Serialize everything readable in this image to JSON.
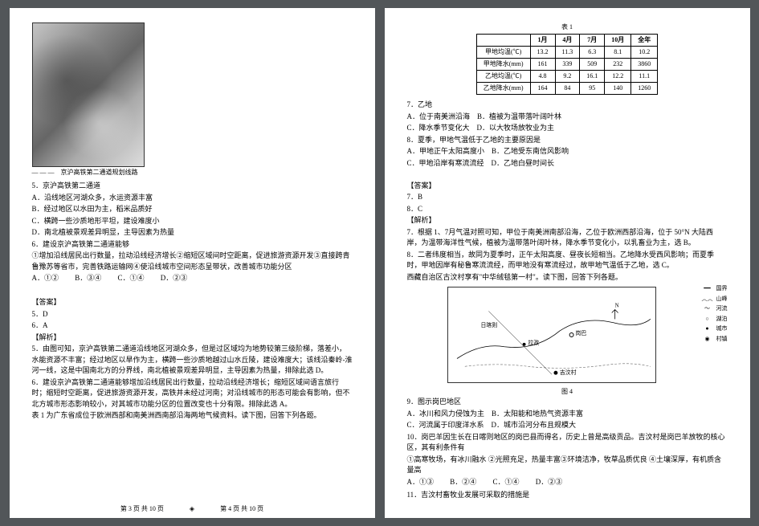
{
  "page_left": {
    "map_legend_dash": "— — —",
    "map_legend_text": "京沪高铁第二通道规划线路",
    "q5_stem": "5．京沪高铁第二通道",
    "q5_A": "A．沿线地区河湖众多，水运资源丰富",
    "q5_B": "B．经过地区以水田为主，稻米品质好",
    "q5_C": "C．横跨一些沙质地形平坦，建设难度小",
    "q5_D": "D．南北植被景观差异明显，主导因素为热量",
    "q6_stem": "6．建设京沪高铁第二通道能够",
    "q6_c1": "①增加沿线居民出行数量，拉动沿线经济增长②缩短区域间时空距离，促进旅游资源开发③直接跨青鲁豫苏等省市，完善铁路运输网④使沿线城市空间形态呈带状，改善城市功能分区",
    "q6_A": "A．①②",
    "q6_B": "B．③④",
    "q6_C": "C．①④",
    "q6_D": "D．②③",
    "ans_header": "【答案】",
    "ans5": "5．D",
    "ans6": "6．A",
    "explain_header": "【解析】",
    "explain5": "5．由图可知，京沪高铁第二通道沿线地区河湖众多，但是过区域均为地势较第三级阶梯，落差小，水能资源不丰富；经过地区以旱作为主，横跨一些沙质地越过山水丘陵，建设难度大；该线沿秦岭-淮河一线，这是中国南北方的分界线，南北植被景观差异明显，主导因素为热量，排除此选 D。",
    "explain6": "6．建设京沪高铁第二通道能够增加沿线居民出行数量，拉动沿线经济增长；缩短区域间语言旅行时；缩短时空距离，促进旅游资源开发，高铁并未经过河南；对沿线城市的形态可能会有影响，但不北方城市形态影响较小，对其城市功能分区的位置改变也十分有限。排除此选 A。",
    "tail_text": "表 1 为广东省成位于欧洲西部和南美洲西南部沿海两地气候资料。读下图，回答下列各题。",
    "footer_left": "第 3 页  共 10 页",
    "footer_right": "第 4 页  共 10 页"
  },
  "page_right": {
    "table_caption": "表 1",
    "table": {
      "headers": [
        "",
        "1月",
        "4月",
        "7月",
        "10月",
        "全年"
      ],
      "rows": [
        [
          "甲地均温(℃)",
          "13.2",
          "11.3",
          "6.3",
          "8.1",
          "10.2"
        ],
        [
          "甲地降水(mm)",
          "161",
          "339",
          "509",
          "232",
          "3860"
        ],
        [
          "乙地均温(℃)",
          "4.8",
          "9.2",
          "16.1",
          "12.2",
          "11.1"
        ],
        [
          "乙地降水(mm)",
          "164",
          "84",
          "95",
          "140",
          "1260"
        ]
      ]
    },
    "q7_stem": "7．乙地",
    "q7_A": "A．位于南美洲沿海",
    "q7_B": "B．植被为温带落叶阔叶林",
    "q7_C": "C．降水季节变化大",
    "q7_D": "D．以大牧场放牧业为主",
    "q8_stem": "8．夏季，甲地气温低于乙地的主要原因是",
    "q8_A": "A．甲地正午太阳高度小",
    "q8_B": "B．乙地受东南信风影响",
    "q8_C": "C．甲地沿岸有寒流流经",
    "q8_D": "D．乙地白昼时间长",
    "ans_header": "【答案】",
    "ans7": "7．B",
    "ans8": "8．C",
    "explain_header": "【解析】",
    "explain7": "7．根据 1、7月气温对照可知，甲位于南美洲南部沿海，乙位于欧洲西部沿海，位于 50°N 大陆西岸，为温带海洋性气候，植被为温带落叶阔叶林，降水季节变化小，以乳畜业为主，选 B。",
    "explain8": "8．二者纬度相当，故同为夏季时，正午太阳高度、昼夜长短相当。乙地降水受西风影响；而夏季时，甲地因岸有秘鲁寒流流经，而甲地没有寒流经过，故甲地气温低于乙地，选 C。",
    "context2": "西藏自治区古汶村享有\"中华绒毯第一村\"。读下图，回答下列各题。",
    "map2_legend": {
      "items": [
        {
          "sym": "━━",
          "label": "国界"
        },
        {
          "sym": "︿︿",
          "label": "山峰"
        },
        {
          "sym": "～",
          "label": "河流"
        },
        {
          "sym": "○",
          "label": "湖泊"
        },
        {
          "sym": "●",
          "label": "城市"
        },
        {
          "sym": "◉",
          "label": "村镇"
        }
      ]
    },
    "fig_label": "图 4",
    "q9_stem": "9．图示岗巴地区",
    "q9_A": "A．冰川和风力侵蚀为主",
    "q9_B": "B．太阳能和地热气资源丰富",
    "q9_C": "C．河流属于印度洋水系",
    "q9_D": "D．城市沿河分布且规模大",
    "q10_stem": "10．岗巴羊因生长在日喀则地区的岗巴县而得名，历史上曾是高级贡品。吉汶村是岗巴羊放牧的核心区，其有利条件有",
    "q10_c": "①高寒牧场，有冰川融水 ②光照充足，热量丰富③环境洁净，牧草品质优良 ④土壤深厚，有机质含量高",
    "q10_A": "A．①③",
    "q10_B": "B．②④",
    "q10_C": "C．①④",
    "q10_D": "D．②③",
    "q11_stem": "11．吉汶村畜牧业发展可采取的措施是"
  }
}
